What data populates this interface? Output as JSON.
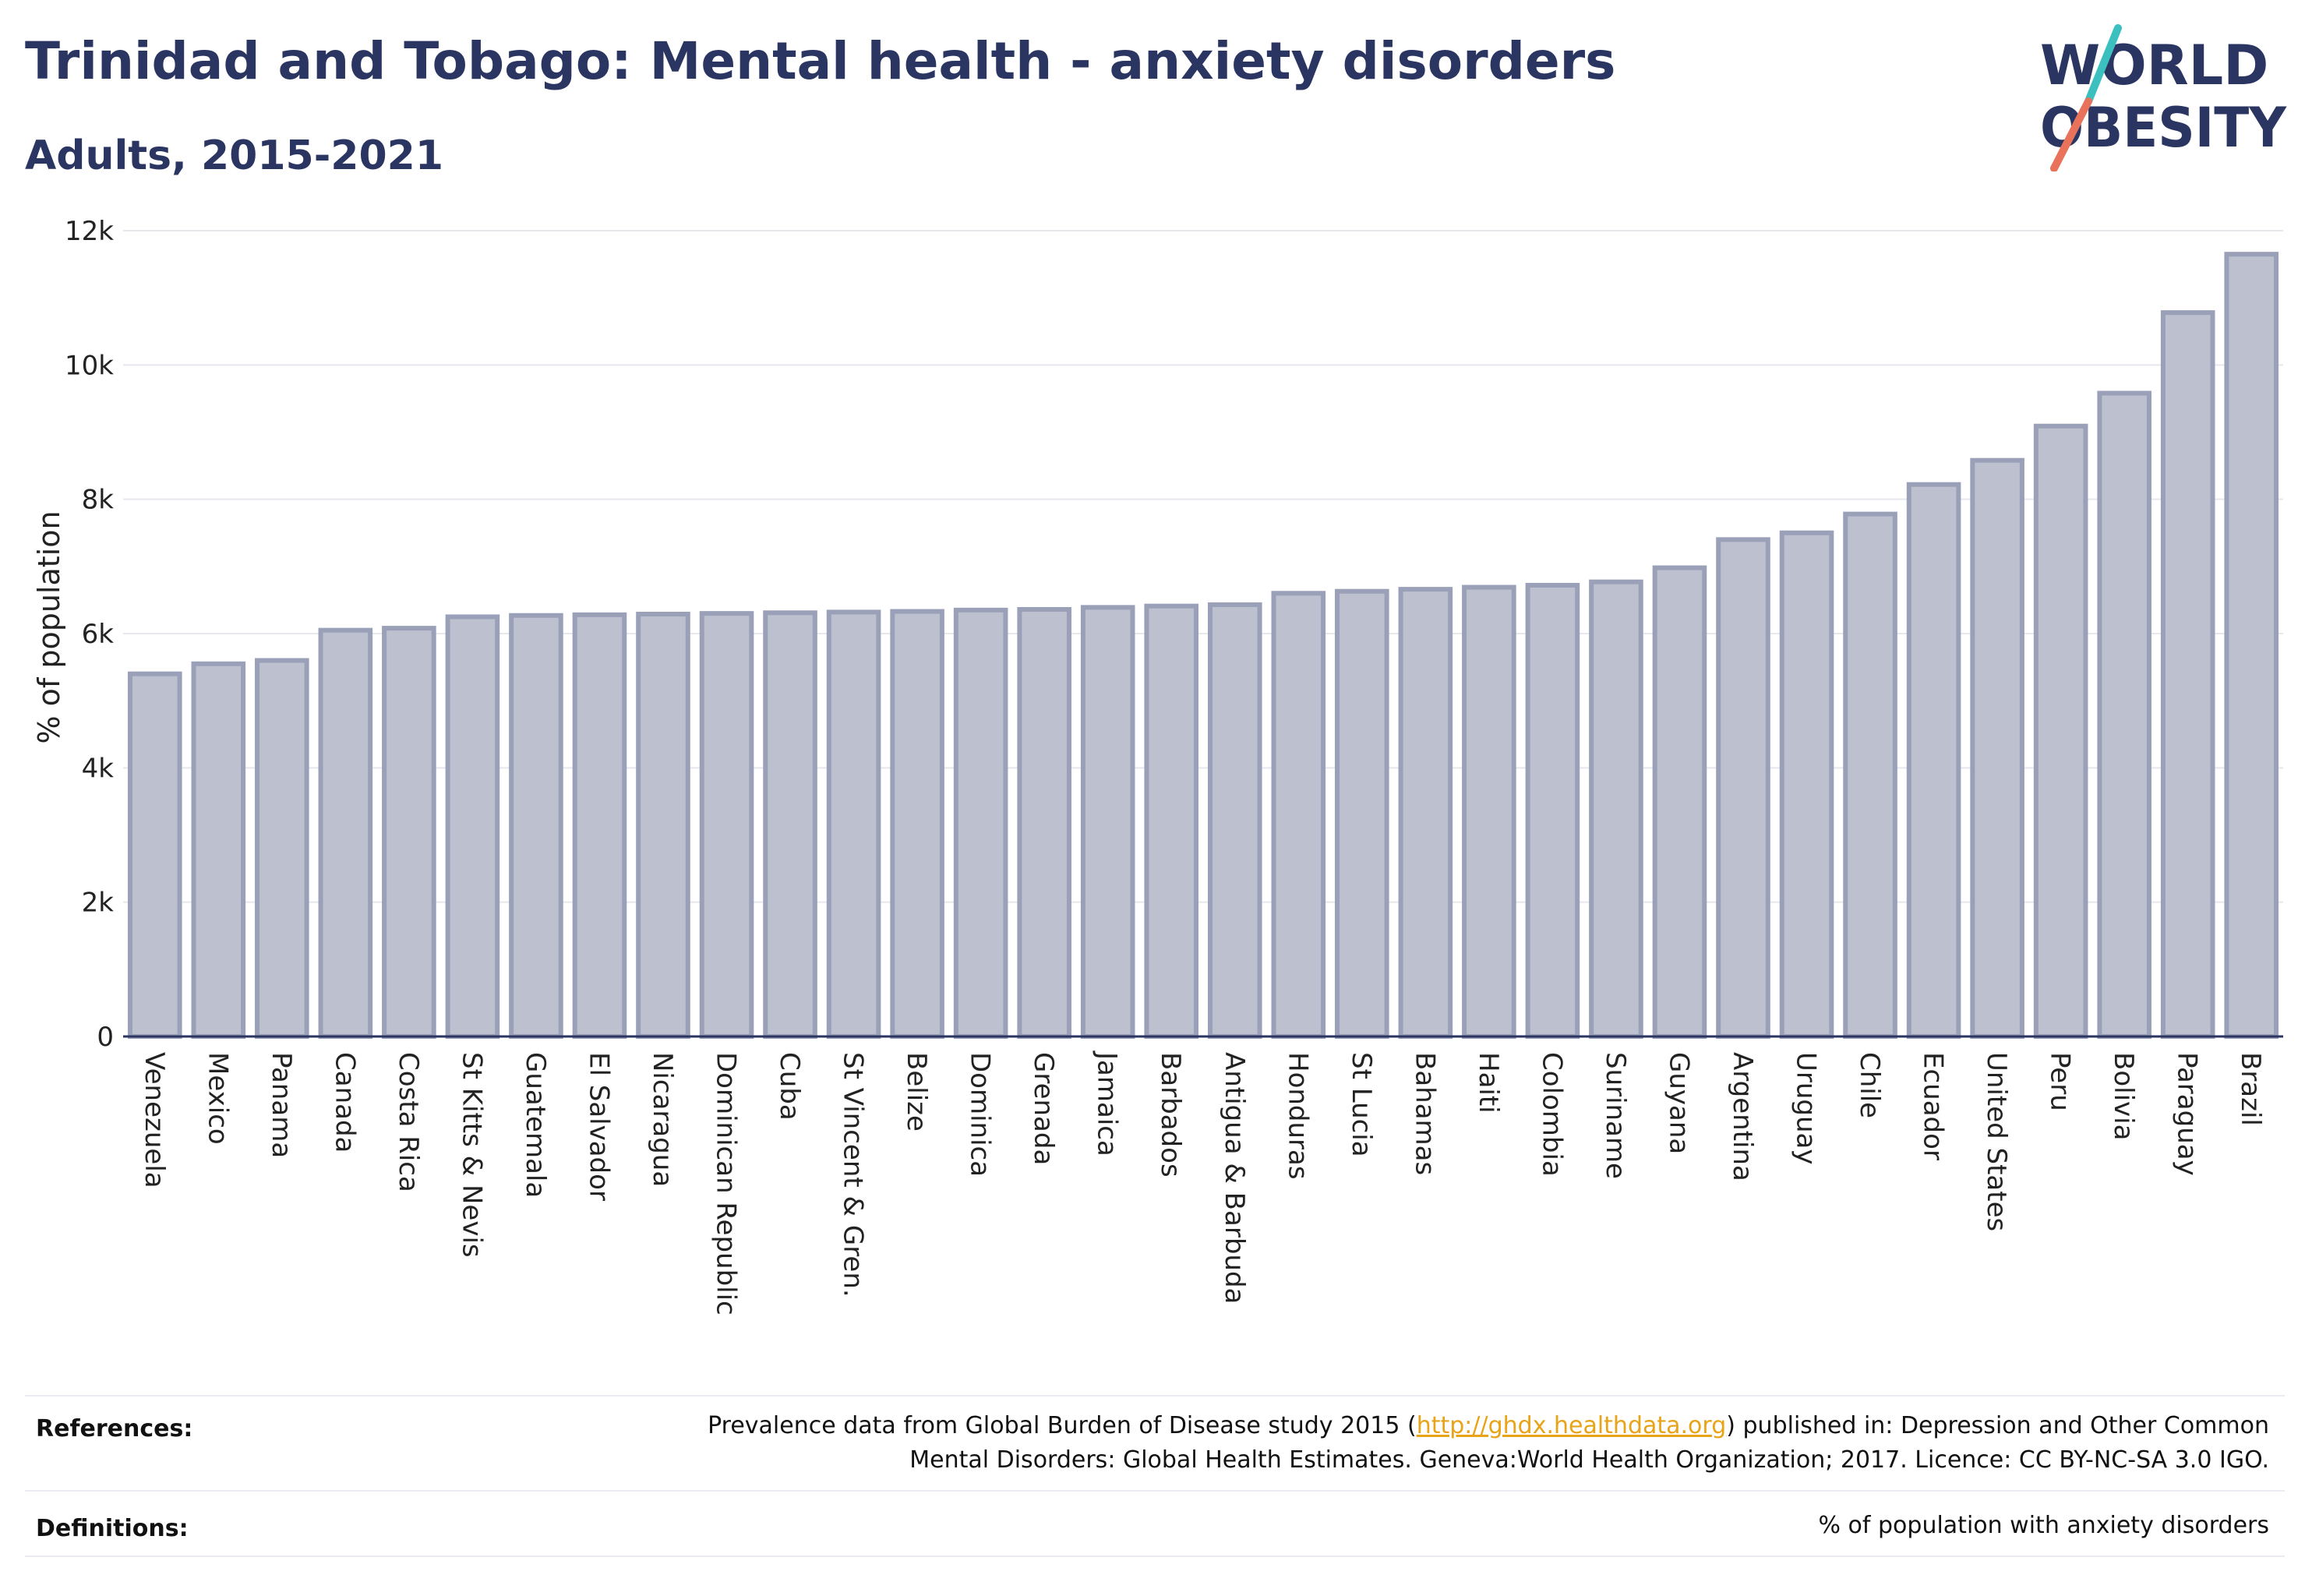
{
  "header": {
    "title": "Trinidad and Tobago: Mental health - anxiety disorders",
    "subtitle": "Adults, 2015-2021"
  },
  "logo": {
    "line1": "WORLD",
    "line2": "OBESITY",
    "accent_colors": [
      "#3bbfbf",
      "#e8735a"
    ],
    "text_color": "#2b3562"
  },
  "chart_data": {
    "type": "bar",
    "title": "Trinidad and Tobago: Mental health - anxiety disorders",
    "subtitle": "Adults, 2015-2021",
    "xlabel": "",
    "ylabel": "% of population",
    "ylim": [
      0,
      12000
    ],
    "yticks": [
      0,
      2000,
      4000,
      6000,
      8000,
      10000,
      12000
    ],
    "ytick_labels": [
      "0",
      "2k",
      "4k",
      "6k",
      "8k",
      "10k",
      "12k"
    ],
    "grid": true,
    "bar_color": "#bcc0cf",
    "bar_border_color": "#9aa0b8",
    "categories": [
      "Venezuela",
      "Mexico",
      "Panama",
      "Canada",
      "Costa Rica",
      "St Kitts & Nevis",
      "Guatemala",
      "El Salvador",
      "Nicaragua",
      "Dominican Republic",
      "Cuba",
      "St Vincent & Gren.",
      "Belize",
      "Dominica",
      "Grenada",
      "Jamaica",
      "Barbados",
      "Antigua & Barbuda",
      "Honduras",
      "St Lucia",
      "Bahamas",
      "Haiti",
      "Colombia",
      "Suriname",
      "Guyana",
      "Argentina",
      "Uruguay",
      "Chile",
      "Ecuador",
      "United States",
      "Peru",
      "Bolivia",
      "Paraguay",
      "Brazil"
    ],
    "values": [
      5400,
      5550,
      5600,
      6050,
      6080,
      6250,
      6270,
      6280,
      6290,
      6300,
      6310,
      6320,
      6330,
      6350,
      6360,
      6390,
      6410,
      6430,
      6600,
      6630,
      6660,
      6690,
      6720,
      6770,
      6980,
      7400,
      7500,
      7780,
      8220,
      8580,
      9090,
      9580,
      10780,
      11650
    ]
  },
  "footer": {
    "references_label": "References:",
    "references_line1_pre": "Prevalence data from Global Burden of Disease study 2015 (",
    "references_link": "http://ghdx.healthdata.org",
    "references_line1_post": ") published in: Depression and Other Common",
    "references_line2": "Mental Disorders: Global Health Estimates. Geneva:World Health Organization; 2017. Licence: CC BY-NC-SA 3.0 IGO.",
    "definitions_label": "Definitions:",
    "definitions_text": "% of population with anxiety disorders"
  }
}
